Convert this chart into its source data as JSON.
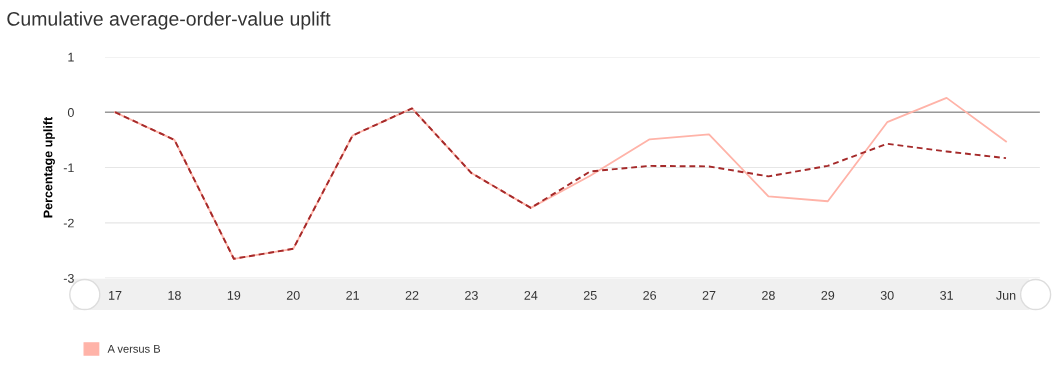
{
  "chart_data": {
    "type": "line",
    "title": "Cumulative average-order-value uplift",
    "ylabel": "Percentage uplift",
    "categories": [
      "17",
      "18",
      "19",
      "20",
      "21",
      "22",
      "23",
      "24",
      "25",
      "26",
      "27",
      "28",
      "29",
      "30",
      "31",
      "Jun"
    ],
    "series": [
      {
        "name": "A versus B",
        "color": "#ffb3a8",
        "line_style": "solid",
        "values": [
          0,
          -0.5,
          -2.65,
          -2.47,
          -0.42,
          0.07,
          -1.1,
          -1.73,
          -1.15,
          -0.49,
          -0.4,
          -1.52,
          -1.61,
          -0.18,
          0.26,
          -0.53
        ]
      },
      {
        "color": "#a52a2a",
        "line_style": "dashed",
        "values": [
          0,
          -0.5,
          -2.65,
          -2.47,
          -0.42,
          0.07,
          -1.1,
          -1.73,
          -1.07,
          -0.97,
          -0.98,
          -1.16,
          -0.97,
          -0.57,
          -0.71,
          -0.83
        ]
      }
    ],
    "ylim": [
      -3,
      1
    ],
    "yticks": [
      -3,
      -2,
      -1,
      0,
      1
    ],
    "grid": "y",
    "ref_lines": [
      {
        "axis": "y",
        "value": 0,
        "color": "#999999"
      }
    ],
    "legend": "bottom left",
    "marker": "none"
  }
}
